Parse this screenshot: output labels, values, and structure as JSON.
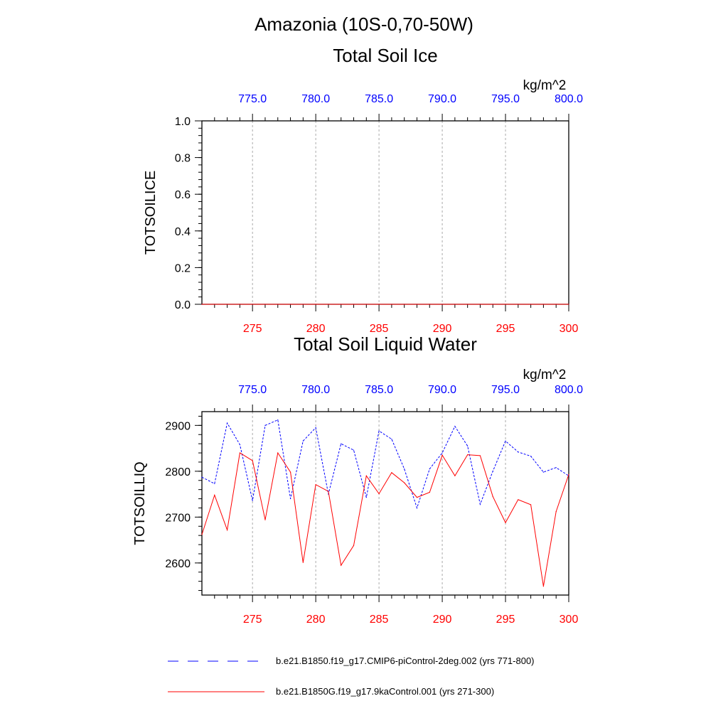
{
  "page_title": "Amazonia (10S-0,70-50W)",
  "colors": {
    "control": "#0000ff",
    "kaControl": "#ff0000",
    "axis": "#000000",
    "grid": "#aaaaaa"
  },
  "chart_data": [
    {
      "type": "line",
      "title": "Total Soil Ice",
      "ylabel": "TOTSOILICE",
      "units": "kg/m^2",
      "ylim": [
        0,
        1
      ],
      "y_ticks": [
        "0.0",
        "0.2",
        "0.4",
        "0.6",
        "0.8",
        "1.0"
      ],
      "x_bottom": {
        "range": [
          271,
          300
        ],
        "ticks": [
          "275",
          "280",
          "285",
          "290",
          "295",
          "300"
        ]
      },
      "x_top": {
        "range": [
          771,
          800
        ],
        "ticks": [
          "775.0",
          "780.0",
          "785.0",
          "790.0",
          "795.0",
          "800.0"
        ]
      },
      "grid": "vertical dashed",
      "series": [
        {
          "name": "b.e21.B1850.f19_g17.CMIP6-piControl-2deg.002 (yrs 771-800)",
          "axis": "top",
          "style": "dashed",
          "x": [
            771,
            772,
            773,
            774,
            775,
            776,
            777,
            778,
            779,
            780,
            781,
            782,
            783,
            784,
            785,
            786,
            787,
            788,
            789,
            790,
            791,
            792,
            793,
            794,
            795,
            796,
            797,
            798,
            799,
            800
          ],
          "values": [
            0,
            0,
            0,
            0,
            0,
            0,
            0,
            0,
            0,
            0,
            0,
            0,
            0,
            0,
            0,
            0,
            0,
            0,
            0,
            0,
            0,
            0,
            0,
            0,
            0,
            0,
            0,
            0,
            0,
            0
          ]
        },
        {
          "name": "b.e21.B1850G.f19_g17.9kaControl.001 (yrs 271-300)",
          "axis": "bottom",
          "style": "solid",
          "x": [
            271,
            272,
            273,
            274,
            275,
            276,
            277,
            278,
            279,
            280,
            281,
            282,
            283,
            284,
            285,
            286,
            287,
            288,
            289,
            290,
            291,
            292,
            293,
            294,
            295,
            296,
            297,
            298,
            299,
            300
          ],
          "values": [
            0,
            0,
            0,
            0,
            0,
            0,
            0,
            0,
            0,
            0,
            0,
            0,
            0,
            0,
            0,
            0,
            0,
            0,
            0,
            0,
            0,
            0,
            0,
            0,
            0,
            0,
            0,
            0,
            0,
            0
          ]
        }
      ]
    },
    {
      "type": "line",
      "title": "Total Soil Liquid Water",
      "ylabel": "TOTSOILLIQ",
      "units": "kg/m^2",
      "ylim": [
        2530,
        2930
      ],
      "y_ticks": [
        "2600",
        "2700",
        "2800",
        "2900"
      ],
      "x_bottom": {
        "range": [
          271,
          300
        ],
        "ticks": [
          "275",
          "280",
          "285",
          "290",
          "295",
          "300"
        ]
      },
      "x_top": {
        "range": [
          771,
          800
        ],
        "ticks": [
          "775.0",
          "780.0",
          "785.0",
          "790.0",
          "795.0",
          "800.0"
        ]
      },
      "grid": "vertical dashed",
      "series": [
        {
          "name": "b.e21.B1850.f19_g17.CMIP6-piControl-2deg.002 (yrs 771-800)",
          "axis": "top",
          "style": "dashed",
          "x": [
            771,
            772,
            773,
            774,
            775,
            776,
            777,
            778,
            779,
            780,
            781,
            782,
            783,
            784,
            785,
            786,
            787,
            788,
            789,
            790,
            791,
            792,
            793,
            794,
            795,
            796,
            797,
            798,
            799,
            800
          ],
          "values": [
            2787,
            2773,
            2905,
            2858,
            2736,
            2900,
            2912,
            2740,
            2866,
            2895,
            2750,
            2860,
            2846,
            2743,
            2888,
            2870,
            2805,
            2720,
            2805,
            2840,
            2898,
            2855,
            2728,
            2800,
            2866,
            2842,
            2833,
            2798,
            2808,
            2790
          ]
        },
        {
          "name": "b.e21.B1850G.f19_g17.9kaControl.001 (yrs 271-300)",
          "axis": "bottom",
          "style": "solid",
          "x": [
            271,
            272,
            273,
            274,
            275,
            276,
            277,
            278,
            279,
            280,
            281,
            282,
            283,
            284,
            285,
            286,
            287,
            288,
            289,
            290,
            291,
            292,
            293,
            294,
            295,
            296,
            297,
            298,
            299,
            300
          ],
          "values": [
            2662,
            2748,
            2672,
            2840,
            2823,
            2694,
            2840,
            2798,
            2601,
            2771,
            2756,
            2595,
            2638,
            2790,
            2751,
            2797,
            2775,
            2743,
            2754,
            2835,
            2790,
            2836,
            2834,
            2745,
            2688,
            2738,
            2727,
            2549,
            2712,
            2793
          ]
        }
      ]
    }
  ],
  "legend": [
    {
      "label": "b.e21.B1850.f19_g17.CMIP6-piControl-2deg.002 (yrs 771-800)",
      "style": "dashed"
    },
    {
      "label": "b.e21.B1850G.f19_g17.9kaControl.001 (yrs 271-300)",
      "style": "solid"
    }
  ]
}
